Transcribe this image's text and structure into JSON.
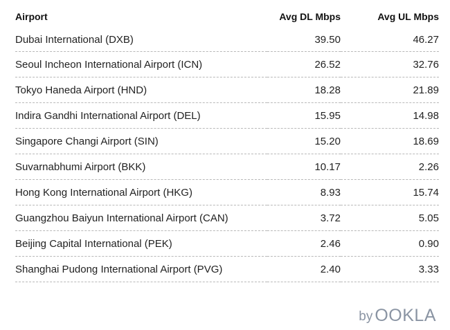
{
  "chart_data": {
    "type": "table",
    "columns": [
      "Airport",
      "Avg DL Mbps",
      "Avg UL Mbps"
    ],
    "rows": [
      [
        "Dubai International (DXB)",
        "39.50",
        "46.27"
      ],
      [
        "Seoul Incheon International Airport (ICN)",
        "26.52",
        "32.76"
      ],
      [
        "Tokyo Haneda Airport (HND)",
        "18.28",
        "21.89"
      ],
      [
        "Indira Gandhi International Airport (DEL)",
        "15.95",
        "14.98"
      ],
      [
        "Singapore Changi Airport (SIN)",
        "15.20",
        "18.69"
      ],
      [
        "Suvarnabhumi Airport (BKK)",
        "10.17",
        "2.26"
      ],
      [
        "Hong Kong International Airport (HKG)",
        "8.93",
        "15.74"
      ],
      [
        "Guangzhou Baiyun International Airport (CAN)",
        "3.72",
        "5.05"
      ],
      [
        "Beijing Capital International (PEK)",
        "2.46",
        "0.90"
      ],
      [
        "Shanghai Pudong International Airport (PVG)",
        "2.40",
        "3.33"
      ]
    ]
  },
  "brand": {
    "by": "by",
    "logo": "OOKLA"
  },
  "colors": {
    "text": "#1c1c1c",
    "divider": "#b8b8b8",
    "brand": "#8a94a3"
  }
}
